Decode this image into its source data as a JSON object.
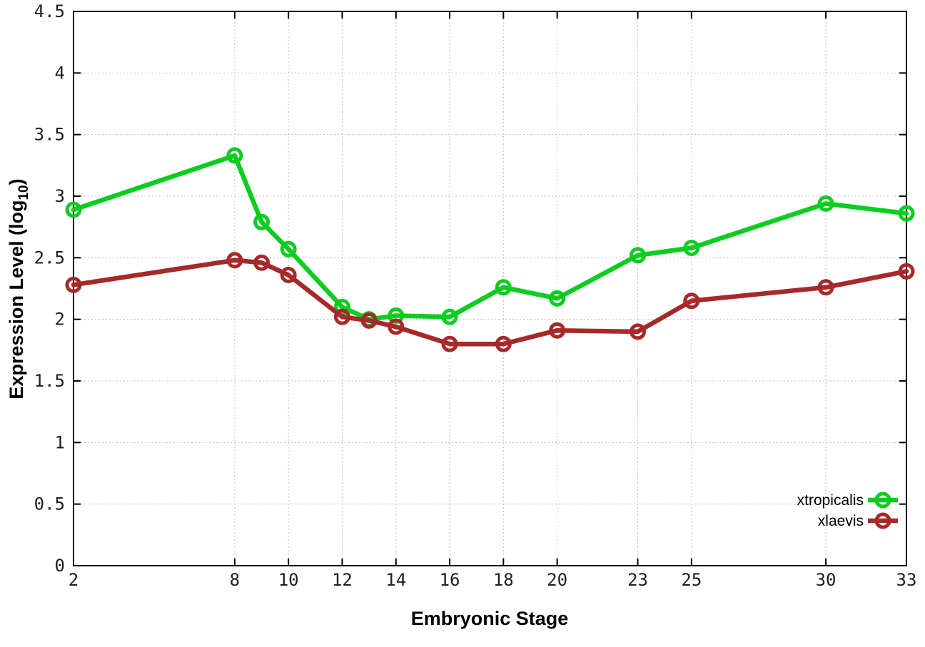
{
  "chart_data": {
    "type": "line",
    "title": "",
    "xlabel": "Embryonic Stage",
    "ylabel": {
      "text": "Expression Level (log10)",
      "prefix": "Expression Level (log",
      "sub": "10",
      "suffix": ")"
    },
    "xlim": [
      2,
      33
    ],
    "ylim": [
      0,
      4.5
    ],
    "x_ticks": [
      2,
      8,
      10,
      12,
      14,
      16,
      18,
      20,
      23,
      25,
      30,
      33
    ],
    "y_ticks": [
      0,
      0.5,
      1,
      1.5,
      2,
      2.5,
      3,
      3.5,
      4,
      4.5
    ],
    "grid": "dotted",
    "legend_position": "inside-right",
    "x": [
      2,
      8,
      9,
      10,
      12,
      13,
      14,
      16,
      18,
      20,
      23,
      25,
      30,
      33
    ],
    "series": [
      {
        "name": "xtropicalis",
        "color": "#0bcd20",
        "marker": "open-circle",
        "values": [
          2.89,
          3.33,
          2.79,
          2.57,
          2.1,
          2.0,
          2.03,
          2.02,
          2.26,
          2.17,
          2.52,
          2.58,
          2.94,
          2.86
        ]
      },
      {
        "name": "xlaevis",
        "color": "#a72929",
        "marker": "open-circle",
        "values": [
          2.28,
          2.48,
          2.46,
          2.36,
          2.02,
          1.99,
          1.94,
          1.8,
          1.8,
          1.91,
          1.9,
          2.15,
          2.26,
          2.39
        ]
      }
    ]
  }
}
